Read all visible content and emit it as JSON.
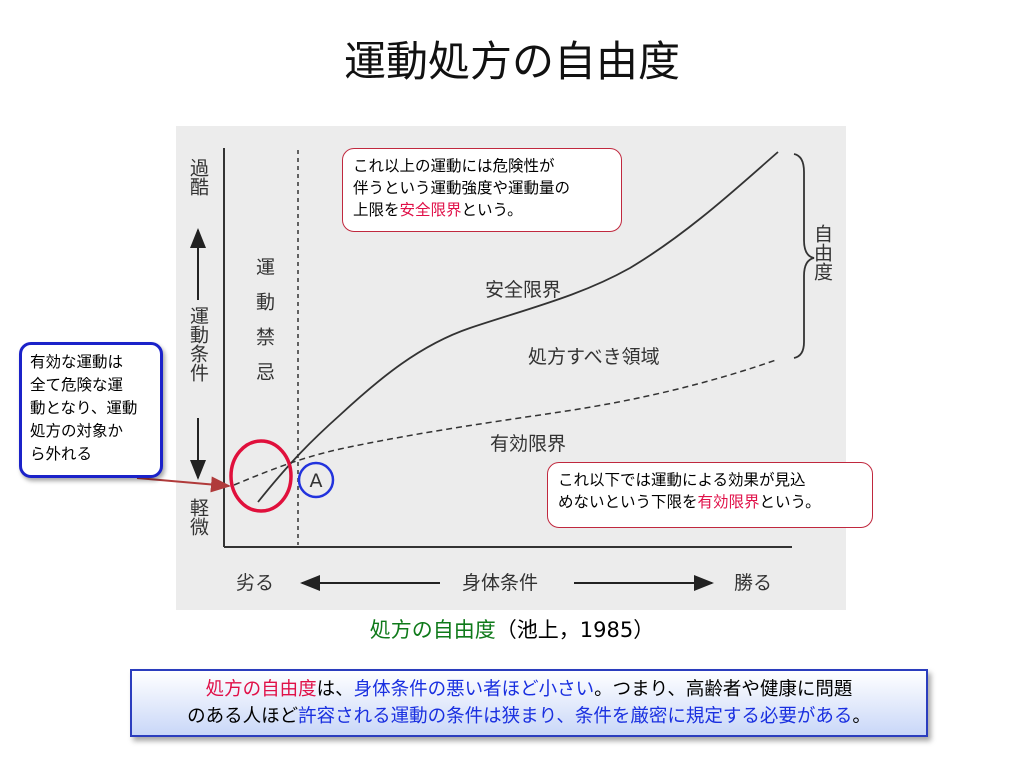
{
  "slide": {
    "title": "運動処方の自由度"
  },
  "diagram": {
    "y_axis": {
      "top_label": "過酷",
      "middle_label": "運動条件",
      "bottom_label": "軽微"
    },
    "x_axis": {
      "left_label": "劣る",
      "middle_label": "身体条件",
      "right_label": "勝る"
    },
    "forbidden_zone_label": "運動禁忌",
    "freedom_label": "自由度",
    "safety_limit_label": "安全限界",
    "prescription_region_label": "処方すべき領域",
    "effective_limit_label": "有効限界",
    "point_a_label": "A",
    "colors": {
      "red_accent": "#e01048",
      "blue_accent": "#1a30e0",
      "green_caption": "#0f7a1a",
      "ellipse_red": "#e0103c",
      "circle_blue": "#2233dd"
    }
  },
  "callouts": {
    "safety": {
      "line1": "これ以上の運動には危険性が",
      "line2": "伴うという運動強度や運動量の",
      "line3_pre": "上限を",
      "line3_highlight": "安全限界",
      "line3_post": "という。"
    },
    "effective": {
      "line1": "これ以下では運動による効果が見込",
      "line2_pre": "めないという下限を",
      "line2_highlight": "有効限界",
      "line2_post": "という。"
    },
    "invalid": {
      "line1": "有効な運動は",
      "line2": "全て危険な運",
      "line3": "動となり、運動",
      "line4": "処方の対象か",
      "line5": "ら外れる"
    }
  },
  "caption": {
    "title": "処方の自由度",
    "reference": "（池上，1985）"
  },
  "summary": {
    "p1": "処方の自由度",
    "p2": "は、",
    "p3": "身体条件の悪い者ほど小さい",
    "p4": "。つまり、高齢者や健康に問題",
    "p5": "のある人ほど",
    "p6": "許容される運動の条件は狭まり、条件を厳密に規定する必要がある",
    "p7": "。"
  }
}
